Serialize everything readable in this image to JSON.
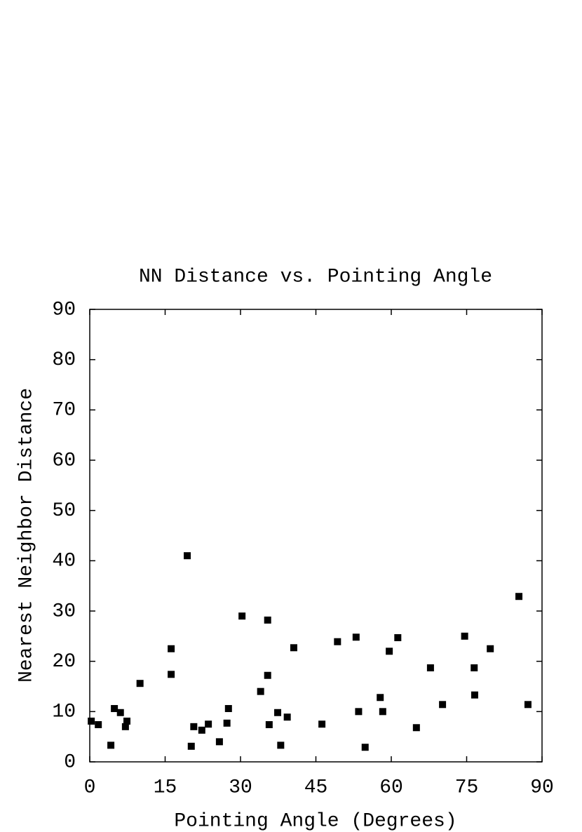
{
  "chart_data": {
    "type": "scatter",
    "title": "NN Distance vs. Pointing Angle",
    "x_label": "Pointing Angle (Degrees)",
    "y_label": "Nearest Neighbor Distance",
    "color": "#000000",
    "x": [
      0.3,
      1.7,
      4.2,
      4.9,
      6.1,
      7.1,
      7.4,
      10.0,
      16.2,
      16.2,
      19.4,
      20.2,
      20.7,
      22.3,
      23.6,
      25.8,
      27.3,
      27.6,
      30.3,
      34.0,
      35.4,
      35.4,
      35.7,
      37.4,
      38.0,
      39.3,
      40.6,
      46.2,
      49.3,
      53.0,
      53.5,
      54.8,
      57.8,
      58.3,
      59.6,
      61.3,
      65.0,
      67.8,
      70.2,
      74.6,
      76.5,
      76.6,
      79.7,
      85.4,
      87.2
    ],
    "values": [
      8.1,
      7.4,
      3.3,
      10.6,
      9.8,
      7.0,
      8.1,
      15.6,
      22.5,
      17.4,
      41.0,
      3.1,
      7.0,
      6.3,
      7.5,
      4.0,
      7.7,
      10.6,
      29.0,
      14.0,
      28.2,
      17.2,
      7.4,
      9.8,
      3.3,
      8.9,
      22.7,
      7.5,
      23.9,
      24.8,
      10.0,
      2.9,
      12.8,
      10.0,
      22.0,
      24.7,
      6.8,
      18.7,
      11.4,
      25.0,
      18.7,
      13.3,
      22.5,
      32.9,
      11.4
    ],
    "xlim": [
      0,
      90
    ],
    "xticks": [
      0,
      15,
      30,
      45,
      60,
      75,
      90
    ],
    "ylim": [
      0,
      90
    ],
    "yticks": [
      0,
      10,
      20,
      30,
      40,
      50,
      60,
      70,
      80,
      90
    ]
  }
}
